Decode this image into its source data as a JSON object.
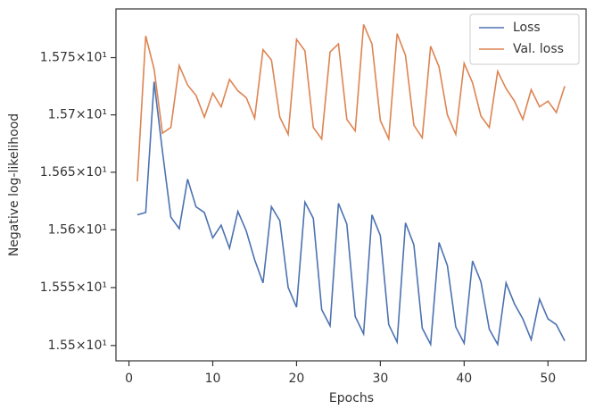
{
  "chart_data": {
    "type": "line",
    "x": [
      1,
      2,
      3,
      4,
      5,
      6,
      7,
      8,
      9,
      10,
      11,
      12,
      13,
      14,
      15,
      16,
      17,
      18,
      19,
      20,
      21,
      22,
      23,
      24,
      25,
      26,
      27,
      28,
      29,
      30,
      31,
      32,
      33,
      34,
      35,
      36,
      37,
      38,
      39,
      40,
      41,
      42,
      43,
      44,
      45,
      46,
      47,
      48,
      49,
      50,
      51,
      52
    ],
    "series": [
      {
        "name": "Loss",
        "color": "#4c72b0",
        "values": [
          15.613,
          15.615,
          15.729,
          15.668,
          15.611,
          15.601,
          15.644,
          15.62,
          15.615,
          15.593,
          15.604,
          15.584,
          15.616,
          15.599,
          15.574,
          15.554,
          15.62,
          15.608,
          15.55,
          15.533,
          15.624,
          15.61,
          15.531,
          15.517,
          15.623,
          15.605,
          15.525,
          15.51,
          15.613,
          15.595,
          15.518,
          15.503,
          15.606,
          15.587,
          15.515,
          15.501,
          15.589,
          15.569,
          15.516,
          15.502,
          15.573,
          15.555,
          15.514,
          15.501,
          15.554,
          15.536,
          15.523,
          15.505,
          15.54,
          15.523,
          15.518,
          15.504
        ]
      },
      {
        "name": "Val. loss",
        "color": "#dd8452",
        "values": [
          15.642,
          15.769,
          15.74,
          15.684,
          15.689,
          15.743,
          15.726,
          15.717,
          15.698,
          15.719,
          15.707,
          15.731,
          15.721,
          15.715,
          15.697,
          15.757,
          15.748,
          15.698,
          15.683,
          15.766,
          15.756,
          15.689,
          15.679,
          15.755,
          15.762,
          15.696,
          15.686,
          15.779,
          15.762,
          15.695,
          15.679,
          15.771,
          15.752,
          15.691,
          15.68,
          15.76,
          15.742,
          15.7,
          15.683,
          15.745,
          15.728,
          15.699,
          15.689,
          15.738,
          15.723,
          15.712,
          15.696,
          15.722,
          15.707,
          15.712,
          15.702,
          15.725
        ]
      }
    ],
    "x_label": "Epochs",
    "y_label": "Negative log-likelihood",
    "xlim": [
      -1.55,
      54.55
    ],
    "xticks": [
      0,
      10,
      20,
      30,
      40,
      50
    ],
    "ylim": [
      15.4868,
      15.7927
    ],
    "y_log_scale": true,
    "yticks": [
      {
        "value": 15.5,
        "label": "1.55×10¹"
      },
      {
        "value": 15.55,
        "label": "1.555×10¹"
      },
      {
        "value": 15.6,
        "label": "1.56×10¹"
      },
      {
        "value": 15.65,
        "label": "1.565×10¹"
      },
      {
        "value": 15.7,
        "label": "1.57×10¹"
      },
      {
        "value": 15.75,
        "label": "1.575×10¹"
      }
    ],
    "legend_position": "upper right",
    "grid": false
  }
}
